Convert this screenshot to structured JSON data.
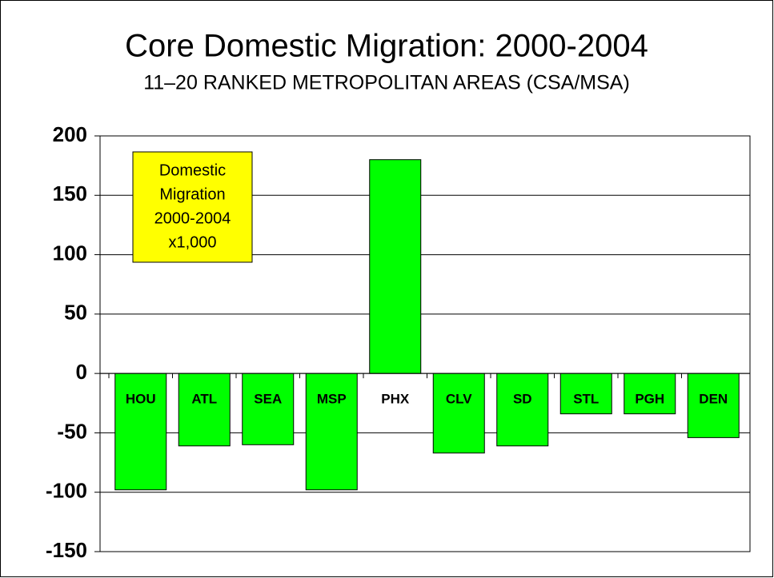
{
  "chart_data": {
    "type": "bar",
    "title": "Core Domestic Migration: 2000-2004",
    "subtitle": "11–20 RANKED METROPOLITAN AREAS (CSA/MSA)",
    "annotation": [
      "Domestic",
      "Migration",
      "2000-2004",
      "x1,000"
    ],
    "categories": [
      "HOU",
      "ATL",
      "SEA",
      "MSP",
      "PHX",
      "CLV",
      "SD",
      "STL",
      "PGH",
      "DEN"
    ],
    "values": [
      -98,
      -61,
      -60,
      -98,
      180,
      -67,
      -61,
      -34,
      -34,
      -54
    ],
    "color": "#00ff00",
    "ylim": [
      -150,
      200
    ],
    "yticks": [
      -150,
      -100,
      -50,
      0,
      50,
      100,
      150,
      200
    ],
    "grid": true
  }
}
